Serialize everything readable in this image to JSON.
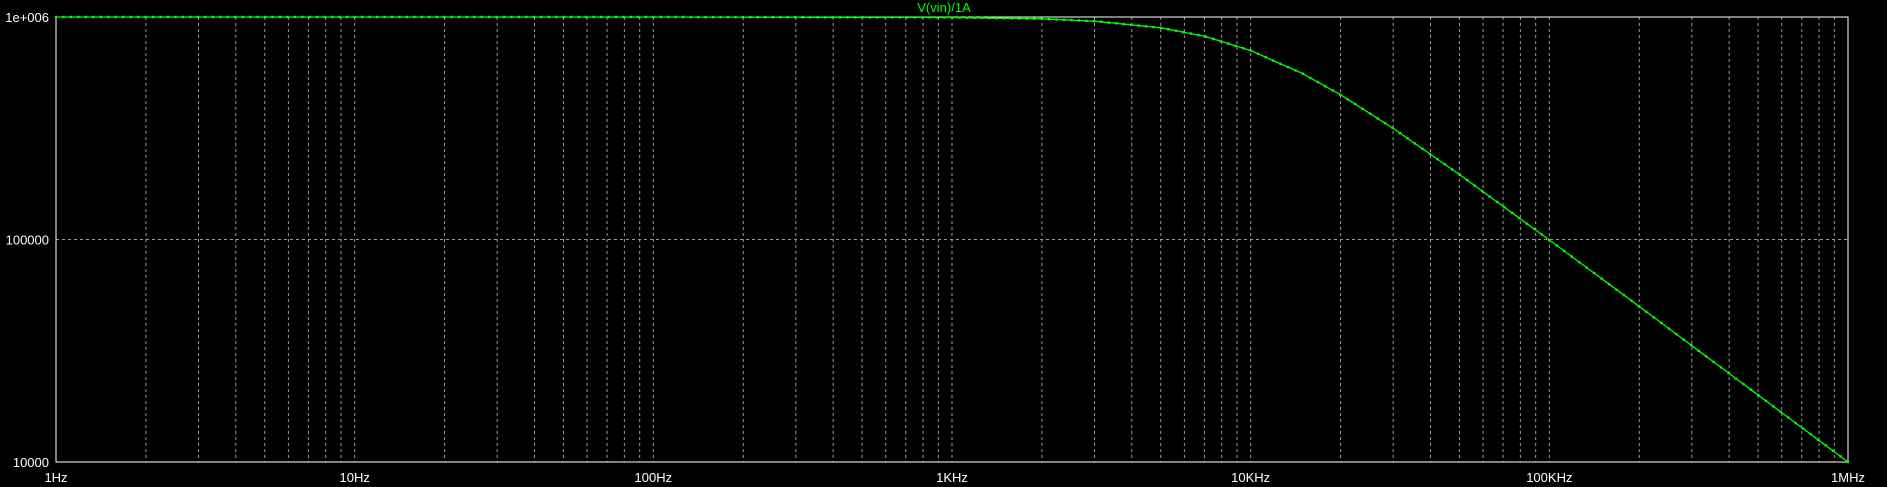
{
  "chart_data": {
    "type": "line",
    "title": "",
    "xlabel": "",
    "ylabel": "",
    "x_scale": "log",
    "y_scale": "log",
    "xlim": [
      1,
      1000000
    ],
    "ylim": [
      10000,
      1000000
    ],
    "grid": true,
    "x_tick_labels": [
      "1Hz",
      "10Hz",
      "100Hz",
      "1KHz",
      "10KHz",
      "100KHz",
      "1MHz"
    ],
    "y_tick_labels": [
      "1e+006",
      "100000",
      "10000"
    ],
    "series": [
      {
        "name": "V(vin)/1A",
        "color": "#00ff00",
        "x": [
          1,
          10,
          100,
          1000,
          2000,
          3000,
          5000,
          7000,
          10000,
          15000,
          20000,
          30000,
          50000,
          100000,
          200000,
          500000,
          1000000
        ],
        "y": [
          1000000,
          1000000,
          999995,
          995000,
          981000,
          958000,
          894000,
          820000,
          707000,
          555000,
          447000,
          316000,
          196000,
          99500,
          50000,
          20000,
          10000
        ]
      }
    ]
  },
  "colors": {
    "background": "#000000",
    "frame": "#ffffff",
    "grid": "#9a9a9a",
    "trace": "#00ff00",
    "text": "#ffffff"
  }
}
